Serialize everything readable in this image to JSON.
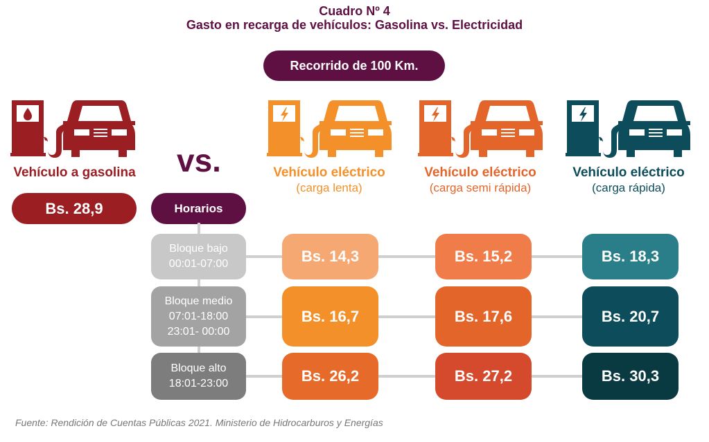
{
  "header": {
    "title": "Cuadro Nº 4",
    "subtitle": "Gasto en recarga de vehículos: Gasolina vs. Electricidad",
    "distance": "Recorrido de 100 Km."
  },
  "vs": "vs.",
  "schedule_label": "Horarios",
  "gasoline": {
    "label": "Vehículo a gasolina",
    "value": "Bs. 28,9",
    "color": "#9b1e22",
    "icon": "gas-pump-car-icon"
  },
  "electric": [
    {
      "label": "Vehículo eléctrico",
      "sub": "(carga lenta)",
      "color": "#f39029",
      "icon": "ev-charger-car-icon"
    },
    {
      "label": "Vehículo eléctrico",
      "sub": "(carga semi rápida)",
      "color": "#e4652a",
      "icon": "ev-charger-car-icon"
    },
    {
      "label": "Vehículo eléctrico",
      "sub": "(carga rápida)",
      "color": "#0d4c5a",
      "icon": "ev-charger-car-icon"
    }
  ],
  "blocks": [
    {
      "name": "Bloque bajo",
      "times": [
        "00:01-07:00"
      ],
      "values": [
        "Bs. 14,3",
        "Bs. 15,2",
        "Bs. 18,3"
      ]
    },
    {
      "name": "Bloque medio",
      "times": [
        "07:01-18:00",
        "23:01- 00:00"
      ],
      "values": [
        "Bs. 16,7",
        "Bs. 17,6",
        "Bs. 20,7"
      ]
    },
    {
      "name": "Bloque alto",
      "times": [
        "18:01-23:00"
      ],
      "values": [
        "Bs. 26,2",
        "Bs. 27,2",
        "Bs. 30,3"
      ]
    }
  ],
  "source": "Fuente: Rendición de Cuentas Públicas 2021. Ministerio de Hidrocarburos y Energías"
}
